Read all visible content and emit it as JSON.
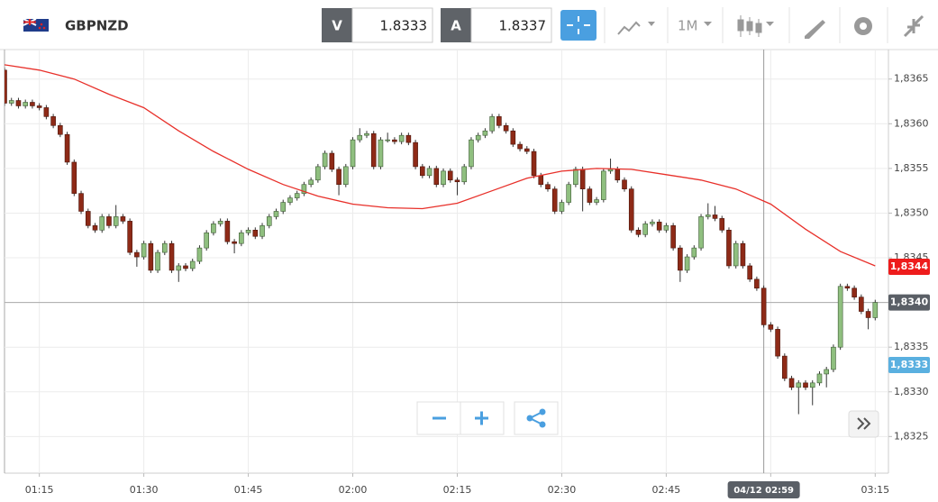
{
  "toolbar": {
    "symbol": "GBPNZD",
    "bid_label": "V",
    "bid": "1.8333",
    "ask_label": "A",
    "ask": "1.8337",
    "timeframe": "1M"
  },
  "chart_data": {
    "type": "candlestick",
    "x": [
      70,
      71,
      72,
      73,
      74,
      75,
      76,
      77,
      78,
      79,
      80,
      81,
      82,
      83,
      84,
      85,
      86,
      87,
      88,
      89,
      90,
      91,
      92,
      93,
      94,
      95,
      96,
      97,
      98,
      99,
      100,
      101,
      102,
      103,
      104,
      105,
      106,
      107,
      108,
      109,
      110,
      111,
      112,
      113,
      114,
      115,
      116,
      117,
      118,
      119,
      120,
      121,
      122,
      123,
      124,
      125,
      126,
      127,
      128,
      129,
      130,
      131,
      132,
      133,
      134,
      135,
      136,
      137,
      138,
      139,
      140,
      141,
      142,
      143,
      144,
      145,
      146,
      147,
      148,
      149,
      150,
      151,
      152,
      153,
      154,
      155,
      156,
      157,
      158,
      159,
      160,
      161,
      162,
      163,
      164,
      165,
      166,
      167,
      168,
      169,
      170,
      171,
      172,
      173,
      174,
      175,
      176,
      177,
      178,
      179,
      180,
      181,
      182,
      183,
      184,
      185,
      186,
      187,
      188,
      189,
      190,
      191,
      192,
      193,
      194,
      195
    ],
    "open": [
      1.8366,
      1.83623,
      1.83626,
      1.8362,
      1.83624,
      1.8362,
      1.83618,
      1.83608,
      1.83598,
      1.83588,
      1.83557,
      1.83522,
      1.83502,
      1.83486,
      1.83481,
      1.83496,
      1.83486,
      1.83496,
      1.83491,
      1.83456,
      1.83451,
      1.83466,
      1.83436,
      1.83456,
      1.83466,
      1.83436,
      1.83441,
      1.83438,
      1.83446,
      1.83461,
      1.83478,
      1.83488,
      1.83491,
      1.83468,
      1.83466,
      1.83478,
      1.83481,
      1.83474,
      1.83486,
      1.83496,
      1.83502,
      1.83512,
      1.83517,
      1.83522,
      1.83532,
      1.83537,
      1.83552,
      1.83567,
      1.83549,
      1.83532,
      1.83552,
      1.83582,
      1.83587,
      1.83589,
      1.83552,
      1.83582,
      1.83582,
      1.8358,
      1.83587,
      1.83579,
      1.83552,
      1.83542,
      1.8355,
      1.83532,
      1.83547,
      1.83537,
      1.83535,
      1.83552,
      1.83582,
      1.83587,
      1.83592,
      1.83608,
      1.83598,
      1.83592,
      1.83577,
      1.83572,
      1.83569,
      1.83542,
      1.83532,
      1.83527,
      1.83502,
      1.83512,
      1.83532,
      1.83549,
      1.83527,
      1.83512,
      1.83515,
      1.83547,
      1.83549,
      1.83537,
      1.83527,
      1.83481,
      1.83476,
      1.83488,
      1.8349,
      1.83481,
      1.83486,
      1.83461,
      1.83436,
      1.83451,
      1.83461,
      1.83496,
      1.83498,
      1.83494,
      1.83481,
      1.83441,
      1.83466,
      1.83441,
      1.83426,
      1.83416,
      1.83375,
      1.8337,
      1.8334,
      1.83315,
      1.83305,
      1.8331,
      1.83305,
      1.8331,
      1.8332,
      1.83325,
      1.8335,
      1.83418,
      1.83416,
      1.83406,
      1.8339,
      1.83383
    ],
    "high": [
      1.83663,
      1.83629,
      1.83629,
      1.83627,
      1.83627,
      1.83623,
      1.83621,
      1.83611,
      1.83601,
      1.83591,
      1.8356,
      1.83525,
      1.83505,
      1.83489,
      1.83499,
      1.83499,
      1.83509,
      1.83499,
      1.83494,
      1.83459,
      1.83469,
      1.83469,
      1.83459,
      1.83469,
      1.83469,
      1.83444,
      1.83444,
      1.83449,
      1.83464,
      1.83481,
      1.83491,
      1.83494,
      1.83494,
      1.83471,
      1.83481,
      1.83484,
      1.83484,
      1.83489,
      1.83499,
      1.83505,
      1.83515,
      1.8352,
      1.83525,
      1.83535,
      1.8354,
      1.83555,
      1.8357,
      1.8357,
      1.83552,
      1.83555,
      1.83585,
      1.83595,
      1.83592,
      1.83592,
      1.83585,
      1.8359,
      1.83585,
      1.8359,
      1.8359,
      1.83582,
      1.83555,
      1.83553,
      1.83553,
      1.8355,
      1.8355,
      1.8354,
      1.83555,
      1.83585,
      1.8359,
      1.83595,
      1.83611,
      1.83611,
      1.83601,
      1.83595,
      1.8358,
      1.83575,
      1.83572,
      1.83545,
      1.83535,
      1.8353,
      1.83515,
      1.83535,
      1.83552,
      1.83552,
      1.8353,
      1.83518,
      1.8355,
      1.83561,
      1.83552,
      1.8354,
      1.8353,
      1.83484,
      1.83491,
      1.83493,
      1.83493,
      1.83489,
      1.83489,
      1.83464,
      1.83454,
      1.83464,
      1.83499,
      1.83511,
      1.83508,
      1.83497,
      1.83484,
      1.83469,
      1.83469,
      1.83444,
      1.83429,
      1.83419,
      1.83378,
      1.83373,
      1.83343,
      1.83318,
      1.83313,
      1.83313,
      1.83313,
      1.83323,
      1.83328,
      1.83353,
      1.83421,
      1.83421,
      1.83419,
      1.83409,
      1.83393,
      1.83403
    ],
    "low": [
      1.8362,
      1.8362,
      1.83617,
      1.83617,
      1.83617,
      1.83615,
      1.83605,
      1.83595,
      1.83585,
      1.83554,
      1.83519,
      1.83499,
      1.83483,
      1.83478,
      1.83478,
      1.83483,
      1.83483,
      1.83488,
      1.83453,
      1.8344,
      1.83448,
      1.83433,
      1.83433,
      1.83453,
      1.83433,
      1.83423,
      1.83435,
      1.83435,
      1.83443,
      1.83458,
      1.83475,
      1.83485,
      1.83465,
      1.83455,
      1.83463,
      1.83475,
      1.83471,
      1.83471,
      1.83483,
      1.83493,
      1.83499,
      1.83509,
      1.83514,
      1.83519,
      1.83529,
      1.83534,
      1.83549,
      1.83546,
      1.8352,
      1.83529,
      1.83549,
      1.83579,
      1.83584,
      1.83549,
      1.83549,
      1.83579,
      1.83577,
      1.83577,
      1.83576,
      1.83549,
      1.83539,
      1.83539,
      1.83529,
      1.83529,
      1.83534,
      1.8352,
      1.83532,
      1.83549,
      1.83579,
      1.83584,
      1.83589,
      1.83595,
      1.83589,
      1.83574,
      1.83569,
      1.83566,
      1.83539,
      1.83529,
      1.83524,
      1.83499,
      1.83499,
      1.83509,
      1.83529,
      1.83502,
      1.83509,
      1.83509,
      1.83512,
      1.83544,
      1.83534,
      1.83524,
      1.83478,
      1.83473,
      1.83473,
      1.83485,
      1.83478,
      1.83478,
      1.83458,
      1.83423,
      1.83433,
      1.83448,
      1.83458,
      1.83493,
      1.83491,
      1.83478,
      1.83438,
      1.83438,
      1.83438,
      1.83423,
      1.83413,
      1.83372,
      1.83367,
      1.83337,
      1.83312,
      1.83302,
      1.83275,
      1.83302,
      1.83285,
      1.83307,
      1.83305,
      1.83322,
      1.83347,
      1.83413,
      1.83403,
      1.83387,
      1.8337,
      1.8338
    ],
    "close": [
      1.83623,
      1.83626,
      1.8362,
      1.83624,
      1.8362,
      1.83618,
      1.83608,
      1.83598,
      1.83588,
      1.83557,
      1.83522,
      1.83502,
      1.83486,
      1.83481,
      1.83496,
      1.83486,
      1.83496,
      1.83491,
      1.83456,
      1.83451,
      1.83466,
      1.83436,
      1.83456,
      1.83466,
      1.83436,
      1.83441,
      1.83438,
      1.83446,
      1.83461,
      1.83478,
      1.83488,
      1.83491,
      1.83468,
      1.83466,
      1.83478,
      1.83481,
      1.83474,
      1.83486,
      1.83496,
      1.83502,
      1.83512,
      1.83517,
      1.83522,
      1.83532,
      1.83537,
      1.83552,
      1.83567,
      1.83549,
      1.83532,
      1.83552,
      1.83582,
      1.83587,
      1.83589,
      1.83552,
      1.83582,
      1.83582,
      1.8358,
      1.83587,
      1.83579,
      1.83552,
      1.83542,
      1.8355,
      1.83532,
      1.83547,
      1.83537,
      1.83535,
      1.83552,
      1.83582,
      1.83587,
      1.83592,
      1.83608,
      1.83598,
      1.83592,
      1.83577,
      1.83572,
      1.83569,
      1.83542,
      1.83532,
      1.83527,
      1.83502,
      1.83512,
      1.83532,
      1.83549,
      1.83527,
      1.83512,
      1.83515,
      1.83547,
      1.83549,
      1.83537,
      1.83527,
      1.83481,
      1.83476,
      1.83488,
      1.8349,
      1.83481,
      1.83486,
      1.83461,
      1.83436,
      1.83451,
      1.83461,
      1.83496,
      1.83498,
      1.83494,
      1.83481,
      1.83441,
      1.83466,
      1.83441,
      1.83426,
      1.83416,
      1.83375,
      1.8337,
      1.8334,
      1.83315,
      1.83305,
      1.8331,
      1.83305,
      1.8331,
      1.8332,
      1.83325,
      1.8335,
      1.83418,
      1.83416,
      1.83406,
      1.8339,
      1.83383,
      1.834
    ],
    "up_color": "#8fbf7f",
    "down_color": "#8e2a17",
    "moving_average": {
      "color": "#e8302a",
      "x": [
        70,
        75,
        80,
        85,
        90,
        95,
        100,
        105,
        110,
        115,
        120,
        125,
        130,
        135,
        140,
        145,
        150,
        155,
        160,
        165,
        170,
        175,
        180,
        185,
        190,
        195
      ],
      "values": [
        1.83666,
        1.8366,
        1.8365,
        1.83633,
        1.83618,
        1.83592,
        1.83569,
        1.83549,
        1.83532,
        1.83519,
        1.8351,
        1.83506,
        1.83505,
        1.83511,
        1.83525,
        1.83539,
        1.83547,
        1.8355,
        1.83549,
        1.83543,
        1.83537,
        1.83527,
        1.8351,
        1.83482,
        1.83457,
        1.83441
      ]
    },
    "xlim": [
      70.0,
      196.9
    ],
    "xticks": [
      {
        "value": 75,
        "label": "01:15"
      },
      {
        "value": 90,
        "label": "01:30"
      },
      {
        "value": 105,
        "label": "01:45"
      },
      {
        "value": 120,
        "label": "02:00"
      },
      {
        "value": 135,
        "label": "02:15"
      },
      {
        "value": 150,
        "label": "02:30"
      },
      {
        "value": 165,
        "label": "02:45"
      },
      {
        "value": 180,
        "label": "03:00"
      },
      {
        "value": 195,
        "label": "03:15"
      }
    ],
    "ylim": [
      1.83209,
      1.83683
    ],
    "yticks": [
      {
        "value": 1.8325,
        "label": "1,8325"
      },
      {
        "value": 1.833,
        "label": "1,8330"
      },
      {
        "value": 1.8335,
        "label": "1,8335"
      },
      {
        "value": 1.834,
        "label": "1,8340"
      },
      {
        "value": 1.8345,
        "label": "1,8345"
      },
      {
        "value": 1.835,
        "label": "1,8350"
      },
      {
        "value": 1.8355,
        "label": "1,8355"
      },
      {
        "value": 1.836,
        "label": "1,8360"
      },
      {
        "value": 1.8365,
        "label": "1,8365"
      }
    ],
    "grid": true,
    "price_tags": [
      {
        "value": 1.8344,
        "label": "1,8344",
        "color": "#ee1c1c"
      },
      {
        "value": 1.834,
        "label": "1,8340",
        "color": "#5a5f66"
      },
      {
        "value": 1.8333,
        "label": "1,8333",
        "color": "#5ab0e0"
      }
    ],
    "current_price_line": 1.834,
    "crosshair": {
      "x": 179,
      "label": "04/12 02:59"
    }
  }
}
